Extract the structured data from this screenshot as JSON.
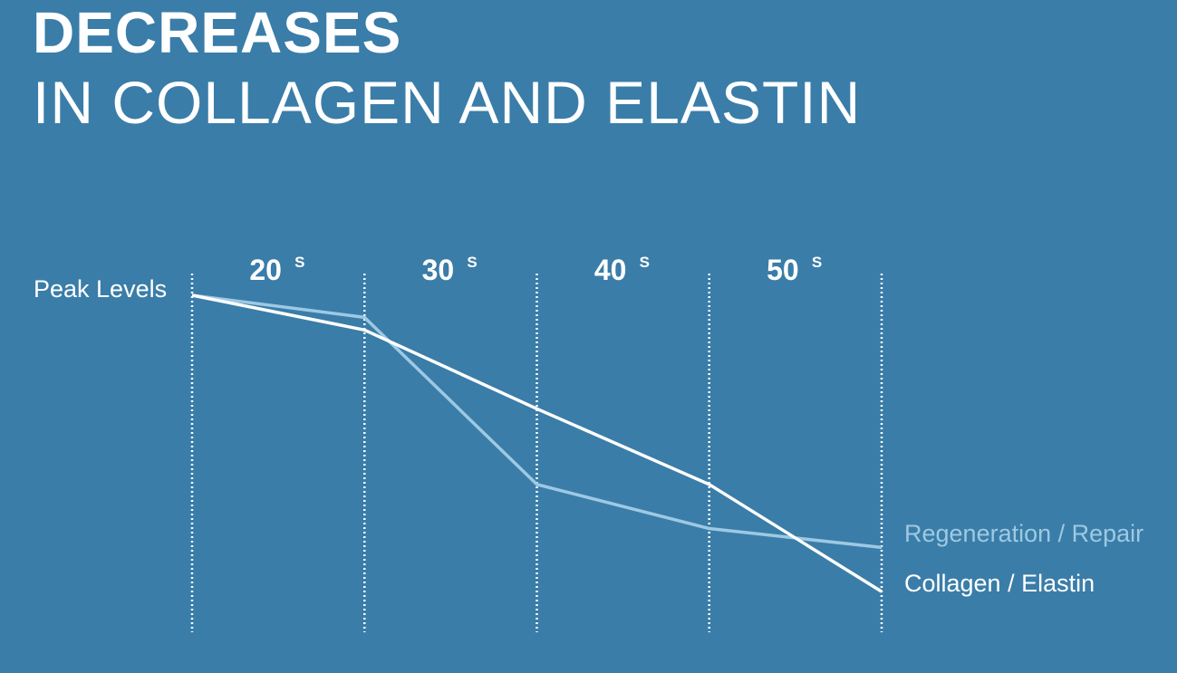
{
  "header": {
    "title_bold": "DECREASES",
    "title_light": "IN COLLAGEN AND ELASTIN"
  },
  "colors": {
    "background": "#3a7da8",
    "collagen_line": "#ffffff",
    "repair_line": "#9ec9e3",
    "text": "#ffffff"
  },
  "chart_data": {
    "type": "line",
    "y_axis_label": "Peak Levels",
    "categories": [
      {
        "label": "20",
        "sup": "S"
      },
      {
        "label": "30",
        "sup": "S"
      },
      {
        "label": "40",
        "sup": "S"
      },
      {
        "label": "50",
        "sup": "S"
      }
    ],
    "x": [
      20,
      30,
      40,
      50,
      60
    ],
    "ylim": [
      0,
      100
    ],
    "grid": "dotted vertical lines at decade boundaries",
    "series": [
      {
        "name": "Regeneration / Repair",
        "color": "#9ec9e3",
        "values": [
          100,
          93,
          40,
          26,
          20
        ]
      },
      {
        "name": "Collagen / Elastin",
        "color": "#ffffff",
        "values": [
          100,
          89,
          64,
          40,
          6
        ]
      }
    ]
  }
}
